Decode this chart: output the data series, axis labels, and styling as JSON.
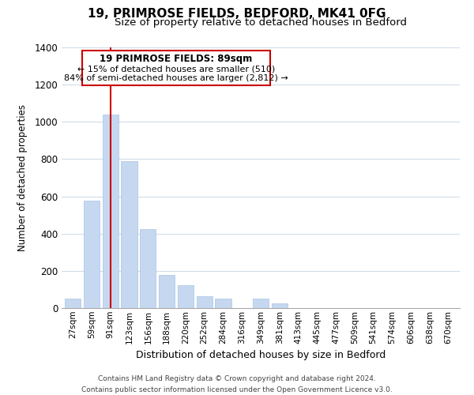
{
  "title": "19, PRIMROSE FIELDS, BEDFORD, MK41 0FG",
  "subtitle": "Size of property relative to detached houses in Bedford",
  "xlabel": "Distribution of detached houses by size in Bedford",
  "ylabel": "Number of detached properties",
  "categories": [
    "27sqm",
    "59sqm",
    "91sqm",
    "123sqm",
    "156sqm",
    "188sqm",
    "220sqm",
    "252sqm",
    "284sqm",
    "316sqm",
    "349sqm",
    "381sqm",
    "413sqm",
    "445sqm",
    "477sqm",
    "509sqm",
    "541sqm",
    "574sqm",
    "606sqm",
    "638sqm",
    "670sqm"
  ],
  "values": [
    50,
    575,
    1040,
    790,
    425,
    180,
    125,
    65,
    50,
    0,
    50,
    25,
    0,
    0,
    0,
    0,
    0,
    0,
    0,
    0,
    0
  ],
  "bar_color": "#c5d8f0",
  "bar_edge_color": "#a8c4e0",
  "vline_x": 2,
  "vline_color": "#cc0000",
  "ylim": [
    0,
    1400
  ],
  "yticks": [
    0,
    200,
    400,
    600,
    800,
    1000,
    1200,
    1400
  ],
  "annotation_title": "19 PRIMROSE FIELDS: 89sqm",
  "annotation_line1": "← 15% of detached houses are smaller (510)",
  "annotation_line2": "84% of semi-detached houses are larger (2,812) →",
  "footer_line1": "Contains HM Land Registry data © Crown copyright and database right 2024.",
  "footer_line2": "Contains public sector information licensed under the Open Government Licence v3.0.",
  "bg_color": "#ffffff",
  "grid_color": "#d0dcea"
}
